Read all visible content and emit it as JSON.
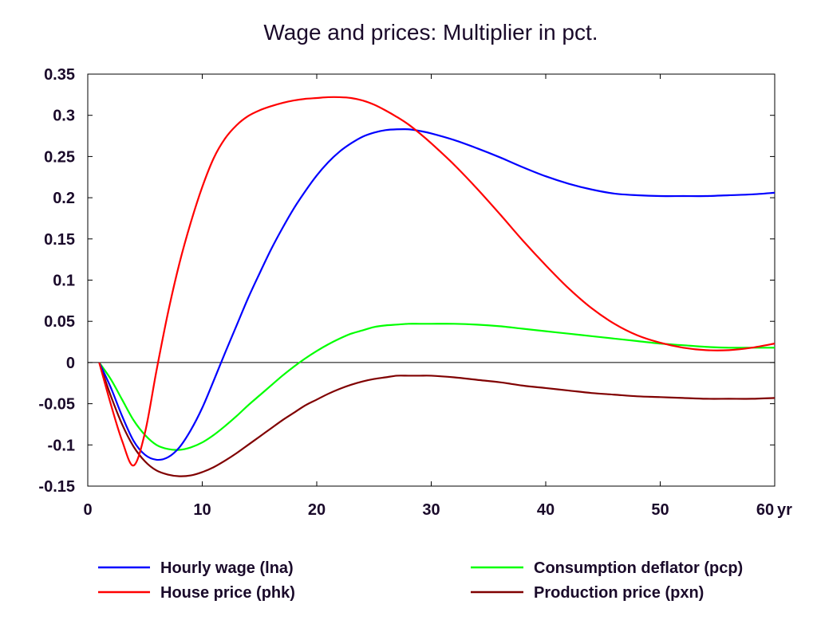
{
  "chart_data": {
    "type": "line",
    "title": "Wage and prices: Multiplier in pct.",
    "xlabel": "",
    "ylabel": "",
    "x_unit_label": "yr",
    "xlim": [
      0,
      60
    ],
    "ylim": [
      -0.15,
      0.35
    ],
    "xticks": [
      0,
      10,
      20,
      30,
      40,
      50,
      60
    ],
    "yticks": [
      -0.15,
      -0.1,
      -0.05,
      0,
      0.05,
      0.1,
      0.15,
      0.2,
      0.25,
      0.3,
      0.35
    ],
    "grid": false,
    "legend_position": "bottom",
    "series": [
      {
        "name": "Hourly wage (lna)",
        "color": "#0000ff",
        "x": [
          1,
          2,
          3,
          4,
          5,
          6,
          7,
          8,
          9,
          10,
          11,
          12,
          13,
          14,
          15,
          16,
          17,
          18,
          19,
          20,
          21,
          22,
          23,
          24,
          25,
          26,
          27,
          28,
          29,
          30,
          32,
          34,
          36,
          38,
          40,
          42,
          44,
          46,
          48,
          50,
          52,
          54,
          56,
          58,
          60
        ],
        "y": [
          0,
          -0.03,
          -0.065,
          -0.095,
          -0.112,
          -0.118,
          -0.115,
          -0.103,
          -0.082,
          -0.055,
          -0.022,
          0.012,
          0.045,
          0.078,
          0.108,
          0.137,
          0.163,
          0.187,
          0.208,
          0.227,
          0.243,
          0.256,
          0.266,
          0.274,
          0.279,
          0.282,
          0.283,
          0.283,
          0.281,
          0.278,
          0.27,
          0.26,
          0.249,
          0.237,
          0.226,
          0.217,
          0.21,
          0.205,
          0.203,
          0.202,
          0.202,
          0.202,
          0.203,
          0.204,
          0.206
        ]
      },
      {
        "name": "Consumption deflator (pcp)",
        "color": "#00ff00",
        "x": [
          1,
          2,
          3,
          4,
          5,
          6,
          7,
          8,
          9,
          10,
          11,
          12,
          13,
          14,
          15,
          16,
          17,
          18,
          19,
          20,
          21,
          22,
          23,
          24,
          25,
          26,
          27,
          28,
          29,
          30,
          32,
          34,
          36,
          38,
          40,
          42,
          44,
          46,
          48,
          50,
          52,
          54,
          56,
          58,
          60
        ],
        "y": [
          0,
          -0.02,
          -0.045,
          -0.07,
          -0.088,
          -0.1,
          -0.105,
          -0.106,
          -0.103,
          -0.097,
          -0.088,
          -0.077,
          -0.065,
          -0.052,
          -0.04,
          -0.028,
          -0.016,
          -0.005,
          0.005,
          0.014,
          0.022,
          0.029,
          0.035,
          0.039,
          0.043,
          0.045,
          0.046,
          0.047,
          0.047,
          0.047,
          0.047,
          0.046,
          0.044,
          0.041,
          0.038,
          0.035,
          0.032,
          0.029,
          0.026,
          0.023,
          0.021,
          0.019,
          0.018,
          0.018,
          0.018
        ]
      },
      {
        "name": "House price (phk)",
        "color": "#ff0000",
        "x": [
          1,
          2,
          3,
          4,
          5,
          6,
          7,
          8,
          9,
          10,
          11,
          12,
          13,
          14,
          15,
          16,
          17,
          18,
          19,
          20,
          21,
          22,
          23,
          24,
          25,
          26,
          27,
          28,
          29,
          30,
          32,
          34,
          36,
          38,
          40,
          42,
          44,
          46,
          48,
          50,
          52,
          54,
          56,
          58,
          60
        ],
        "y": [
          0,
          -0.05,
          -0.095,
          -0.125,
          -0.085,
          -0.01,
          0.06,
          0.12,
          0.17,
          0.213,
          0.248,
          0.272,
          0.288,
          0.299,
          0.306,
          0.311,
          0.315,
          0.318,
          0.32,
          0.321,
          0.322,
          0.322,
          0.321,
          0.318,
          0.313,
          0.306,
          0.298,
          0.289,
          0.278,
          0.266,
          0.24,
          0.211,
          0.18,
          0.148,
          0.118,
          0.09,
          0.066,
          0.047,
          0.033,
          0.024,
          0.018,
          0.015,
          0.015,
          0.018,
          0.023
        ]
      },
      {
        "name": "Production price (pxn)",
        "color": "#800000",
        "x": [
          1,
          2,
          3,
          4,
          5,
          6,
          7,
          8,
          9,
          10,
          11,
          12,
          13,
          14,
          15,
          16,
          17,
          18,
          19,
          20,
          21,
          22,
          23,
          24,
          25,
          26,
          27,
          28,
          29,
          30,
          32,
          34,
          36,
          38,
          40,
          42,
          44,
          46,
          48,
          50,
          52,
          54,
          56,
          58,
          60
        ],
        "y": [
          0,
          -0.04,
          -0.075,
          -0.102,
          -0.12,
          -0.131,
          -0.136,
          -0.138,
          -0.137,
          -0.133,
          -0.127,
          -0.119,
          -0.11,
          -0.1,
          -0.09,
          -0.08,
          -0.07,
          -0.061,
          -0.052,
          -0.045,
          -0.038,
          -0.032,
          -0.027,
          -0.023,
          -0.02,
          -0.018,
          -0.016,
          -0.016,
          -0.016,
          -0.016,
          -0.018,
          -0.021,
          -0.024,
          -0.028,
          -0.031,
          -0.034,
          -0.037,
          -0.039,
          -0.041,
          -0.042,
          -0.043,
          -0.044,
          -0.044,
          -0.044,
          -0.043
        ]
      }
    ]
  }
}
